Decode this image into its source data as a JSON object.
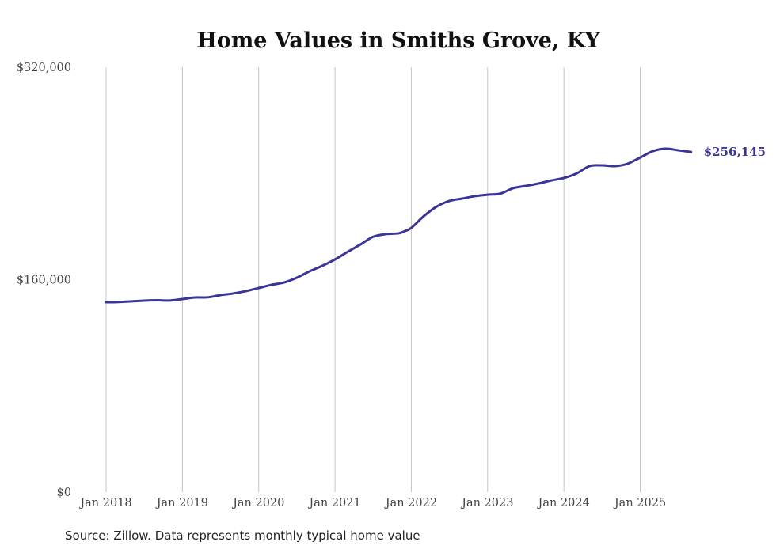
{
  "chart_data": {
    "type": "line",
    "title": "Home Values in Smiths Grove, KY",
    "xlabel": "",
    "ylabel": "",
    "ylim": [
      0,
      320000
    ],
    "y_ticks": [
      {
        "value": 0,
        "label": "$0"
      },
      {
        "value": 160000,
        "label": "$160,000"
      },
      {
        "value": 320000,
        "label": "$320,000"
      }
    ],
    "x_ticks": [
      {
        "month_index": 0,
        "label": "Jan 2018"
      },
      {
        "month_index": 12,
        "label": "Jan 2019"
      },
      {
        "month_index": 24,
        "label": "Jan 2020"
      },
      {
        "month_index": 36,
        "label": "Jan 2021"
      },
      {
        "month_index": 48,
        "label": "Jan 2022"
      },
      {
        "month_index": 60,
        "label": "Jan 2023"
      },
      {
        "month_index": 72,
        "label": "Jan 2024"
      },
      {
        "month_index": 84,
        "label": "Jan 2025"
      }
    ],
    "grid": "vertical",
    "series": [
      {
        "name": "Typical home value",
        "color": "#3a3596",
        "x_month_index": [
          0,
          2,
          6,
          8,
          10,
          12,
          14,
          16,
          18,
          20,
          22,
          24,
          26,
          28,
          30,
          32,
          34,
          36,
          38,
          40,
          42,
          44,
          46,
          47,
          48,
          50,
          52,
          54,
          56,
          58,
          60,
          62,
          64,
          66,
          68,
          70,
          72,
          74,
          76,
          78,
          80,
          82,
          84,
          86,
          88,
          90,
          92
        ],
        "values": [
          143000,
          143200,
          144200,
          144500,
          144300,
          145400,
          146600,
          146700,
          148400,
          149600,
          151400,
          153700,
          156100,
          157900,
          161500,
          166300,
          170400,
          175200,
          181000,
          186500,
          192300,
          194300,
          194900,
          196600,
          199000,
          208000,
          215100,
          219300,
          221100,
          222900,
          224000,
          224800,
          228900,
          230600,
          232400,
          234700,
          236600,
          240000,
          245500,
          246100,
          245500,
          247300,
          252000,
          256800,
          258600,
          257400,
          256145
        ]
      }
    ],
    "end_label": "$256,145"
  },
  "source": "Source: Zillow. Data represents monthly typical home value"
}
